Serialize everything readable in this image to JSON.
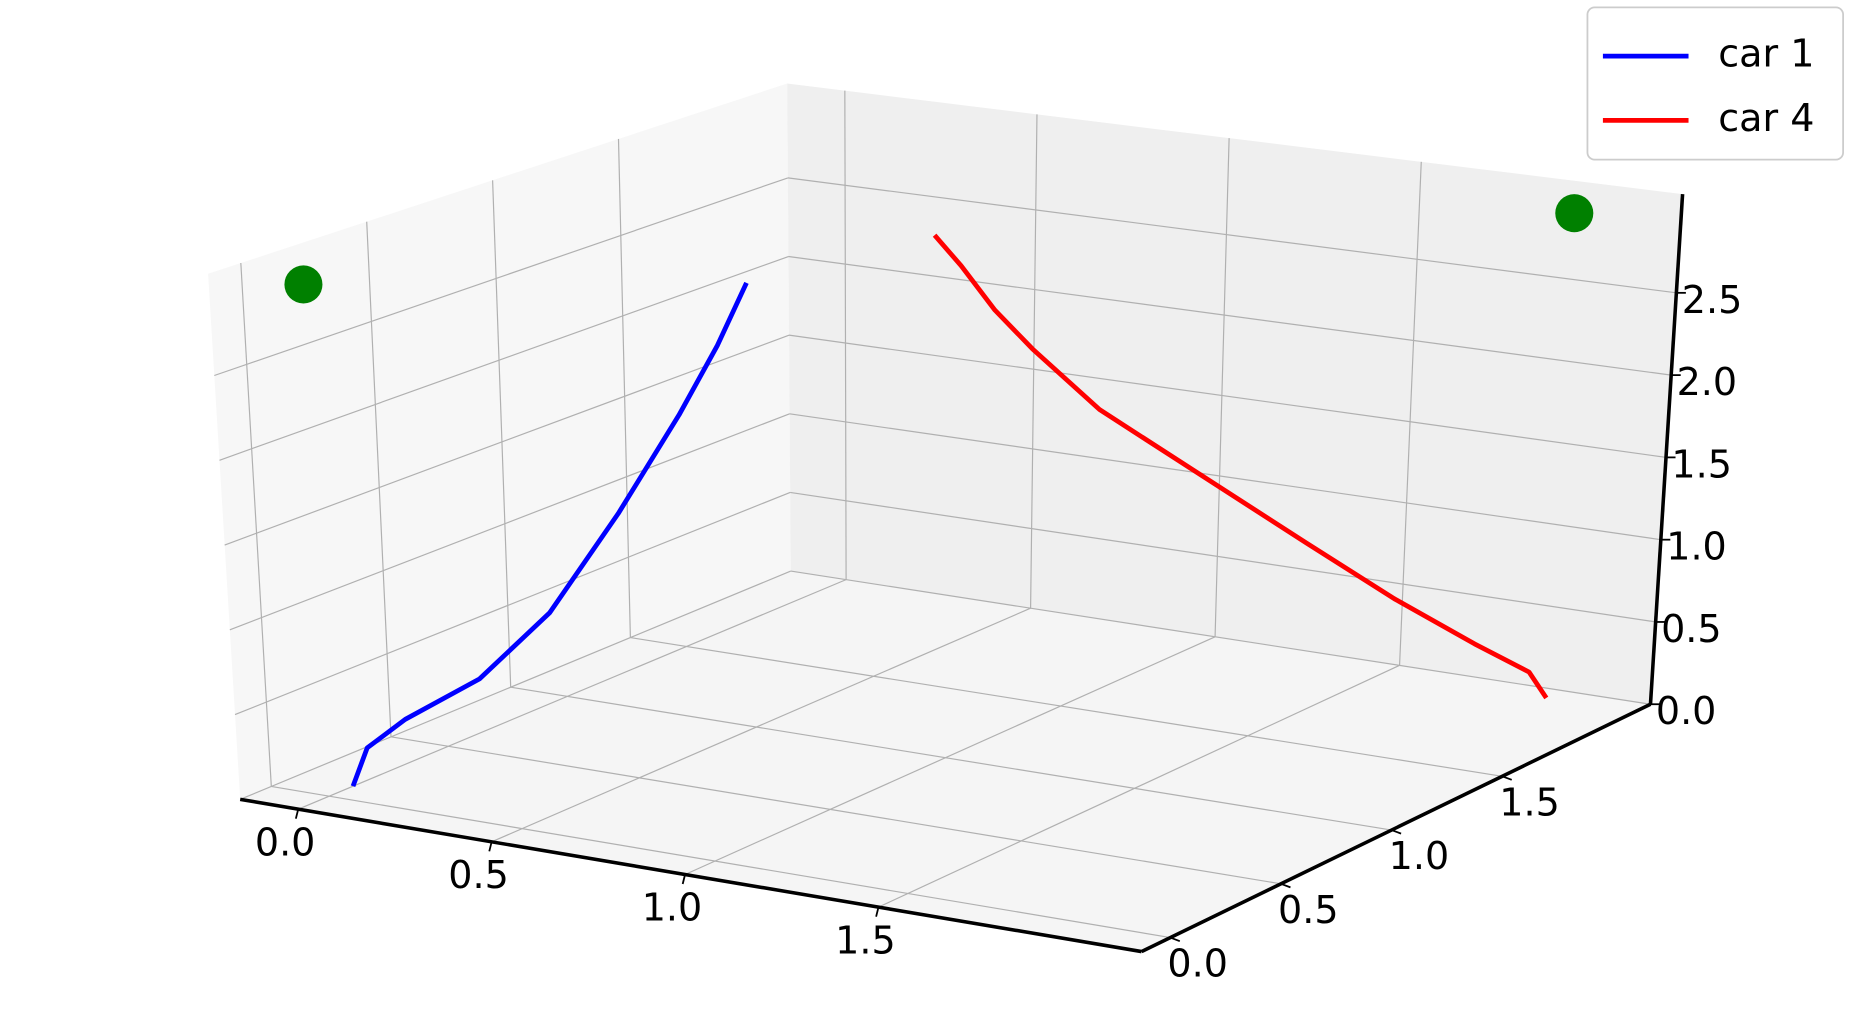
{
  "chart_data": {
    "type": "line3d",
    "xlim": [
      -0.15,
      2.18
    ],
    "ylim": [
      -0.13,
      2.17
    ],
    "zlim": [
      0,
      3.1
    ],
    "xticks": [
      {
        "value": 0,
        "label": "0.0"
      },
      {
        "value": 0.5,
        "label": "0.5"
      },
      {
        "value": 1,
        "label": "1.0"
      },
      {
        "value": 1.5,
        "label": "1.5"
      }
    ],
    "yticks": [
      {
        "value": 0,
        "label": "0.0"
      },
      {
        "value": 0.5,
        "label": "0.5"
      },
      {
        "value": 1,
        "label": "1.0"
      },
      {
        "value": 1.5,
        "label": "1.5"
      }
    ],
    "zticks": [
      {
        "value": 0,
        "label": "0.0"
      },
      {
        "value": 0.5,
        "label": "0.5"
      },
      {
        "value": 1,
        "label": "1.0"
      },
      {
        "value": 1.5,
        "label": "1.5"
      },
      {
        "value": 2,
        "label": "2.0"
      },
      {
        "value": 2.5,
        "label": "2.5"
      }
    ],
    "grid": true,
    "legend": "upper right",
    "series": [
      {
        "name": "car 1",
        "color": "#0000ff",
        "x": [
          0.0,
          0.01,
          0.03,
          0.07,
          0.1,
          0.14,
          0.17,
          0.19,
          0.21
        ],
        "y": [
          0.1,
          0.15,
          0.28,
          0.53,
          0.78,
          1.01,
          1.22,
          1.35,
          1.44
        ],
        "z": [
          0.0,
          0.2,
          0.3,
          0.41,
          0.67,
          1.15,
          1.64,
          2.0,
          2.34
        ]
      },
      {
        "name": "car 4",
        "color": "#ff0000",
        "x": [
          1.94,
          1.89,
          1.74,
          1.52,
          1.28,
          0.97,
          0.72,
          0.54,
          0.44,
          0.35,
          0.28
        ],
        "y": [
          2.1,
          2.1,
          2.1,
          2.1,
          2.1,
          2.1,
          2.1,
          2.1,
          2.1,
          2.1,
          2.1
        ],
        "z": [
          0.0,
          0.14,
          0.26,
          0.46,
          0.72,
          1.07,
          1.36,
          1.68,
          1.89,
          2.14,
          2.31
        ]
      }
    ],
    "points": {
      "color": "#008000",
      "x": [
        0,
        2
      ],
      "y": [
        0,
        2
      ],
      "z": [
        3,
        3
      ]
    }
  }
}
